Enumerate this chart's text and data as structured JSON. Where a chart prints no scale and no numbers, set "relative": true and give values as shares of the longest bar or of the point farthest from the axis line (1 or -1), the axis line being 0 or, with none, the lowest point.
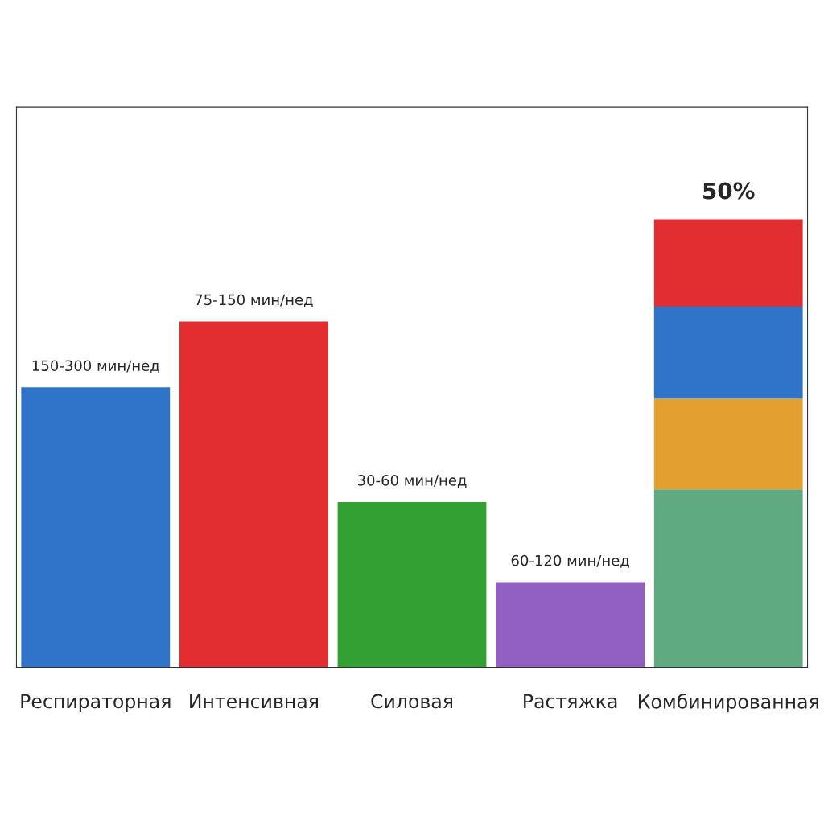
{
  "chart_data": {
    "type": "bar",
    "stacked": true,
    "relative": true,
    "categories": [
      "Респираторная",
      "Интенсивная",
      "Силовая",
      "Растяжка",
      "Комбинированная"
    ],
    "series": [
      {
        "colors": [
          "#2f74c8",
          "#e22e31",
          "#32a032",
          "#9160c2",
          "#5faa80"
        ],
        "values": [
          0.625,
          0.772,
          0.369,
          0.19,
          0.397
        ]
      },
      {
        "colors": [
          null,
          null,
          null,
          null,
          "#e3a030"
        ],
        "values": [
          null,
          null,
          null,
          null,
          0.203
        ]
      },
      {
        "colors": [
          null,
          null,
          null,
          null,
          "#2f74c8"
        ],
        "values": [
          null,
          null,
          null,
          null,
          0.205
        ]
      },
      {
        "colors": [
          null,
          null,
          null,
          null,
          "#e22e31"
        ],
        "values": [
          null,
          null,
          null,
          null,
          0.195
        ]
      }
    ],
    "totals": [
      "150-300 мин/нед",
      "75-150 мин/нед",
      "30-60 мин/нед",
      "60-120 мин/нед",
      null
    ],
    "annotations": [
      {
        "text": "50%",
        "x": "Комбинированная",
        "y": 1
      }
    ],
    "grid": false,
    "legend": false
  }
}
